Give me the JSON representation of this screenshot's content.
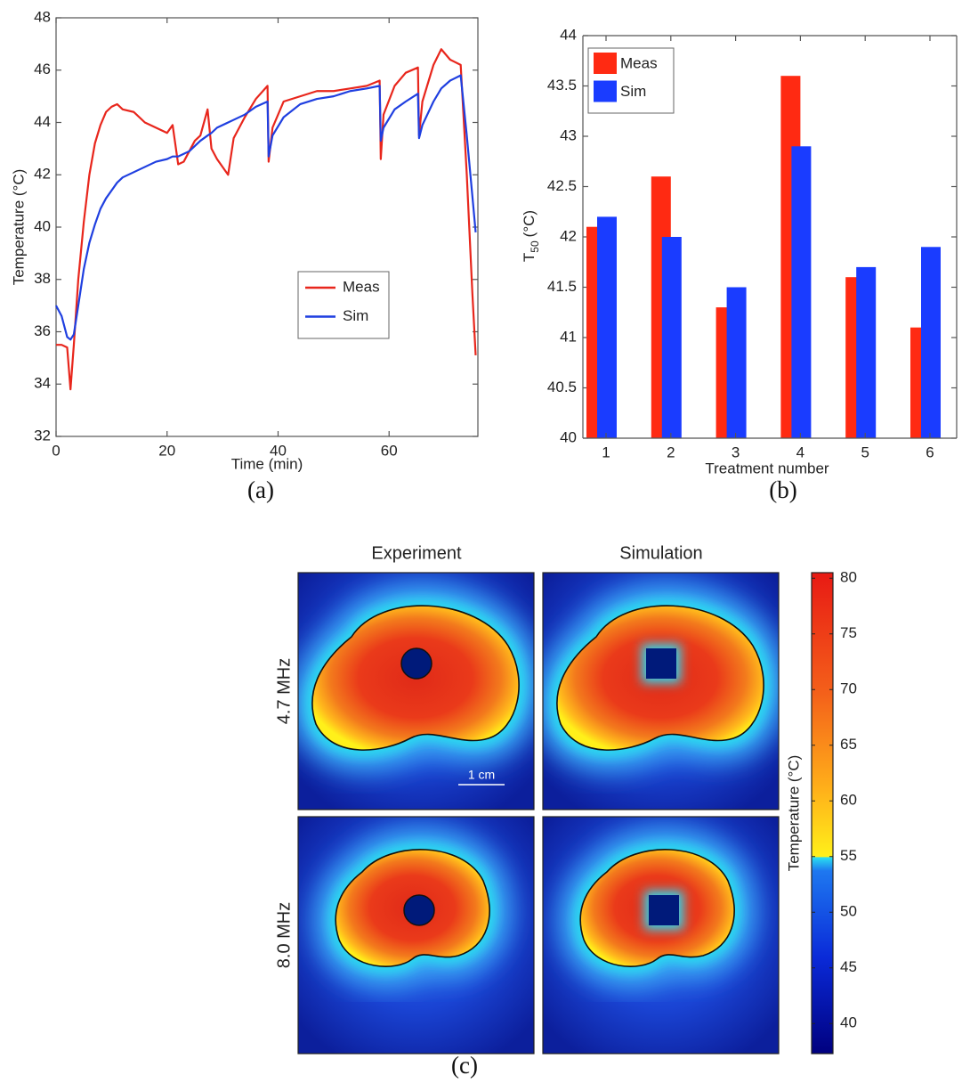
{
  "chart_data": [
    {
      "type": "line",
      "caption": "(a)",
      "xlabel": "Time (min)",
      "ylabel": "Temperature (°C)",
      "xlim": [
        0,
        76
      ],
      "ylim": [
        32,
        48
      ],
      "xticks": [
        0,
        20,
        40,
        60
      ],
      "yticks": [
        32,
        34,
        36,
        38,
        40,
        42,
        44,
        46,
        48
      ],
      "legend": "lower right",
      "x": [
        0,
        1,
        2,
        2.6,
        3.2,
        4,
        5,
        6,
        7,
        8,
        9,
        10,
        11,
        12,
        14,
        16,
        18,
        20,
        21,
        22,
        23,
        24,
        25,
        26,
        27.3,
        28,
        29,
        31,
        32,
        34,
        36,
        38.1,
        38.3,
        39,
        41,
        44,
        47,
        50,
        53,
        56,
        58.3,
        58.5,
        59,
        61,
        63,
        65.2,
        65.4,
        66,
        68,
        69.4,
        71,
        72.9,
        74,
        75,
        75.6
      ],
      "series": [
        {
          "name": "Meas",
          "color": "#e8261c",
          "values": [
            35.5,
            35.5,
            35.4,
            33.8,
            35.5,
            38,
            40.2,
            42,
            43.2,
            43.9,
            44.4,
            44.6,
            44.7,
            44.5,
            44.4,
            44.0,
            43.8,
            43.6,
            43.9,
            42.4,
            42.5,
            42.9,
            43.3,
            43.5,
            44.5,
            43.0,
            42.6,
            42.0,
            43.4,
            44.2,
            44.9,
            45.4,
            42.5,
            43.8,
            44.8,
            45.0,
            45.2,
            45.2,
            45.3,
            45.4,
            45.6,
            42.6,
            44.3,
            45.4,
            45.9,
            46.1,
            43.5,
            44.8,
            46.2,
            46.8,
            46.4,
            46.2,
            42.0,
            37.5,
            35.1
          ]
        },
        {
          "name": "Sim",
          "color": "#1f3fe0",
          "values": [
            37.0,
            36.6,
            35.8,
            35.7,
            35.9,
            37,
            38.4,
            39.4,
            40.1,
            40.7,
            41.1,
            41.4,
            41.7,
            41.9,
            42.1,
            42.3,
            42.5,
            42.6,
            42.7,
            42.7,
            42.8,
            42.9,
            43.1,
            43.3,
            43.5,
            43.6,
            43.8,
            44.0,
            44.1,
            44.3,
            44.6,
            44.8,
            42.7,
            43.5,
            44.2,
            44.7,
            44.9,
            45.0,
            45.2,
            45.3,
            45.4,
            43.3,
            43.8,
            44.5,
            44.8,
            45.1,
            43.4,
            43.9,
            44.8,
            45.3,
            45.6,
            45.8,
            43.5,
            41.2,
            39.8
          ]
        }
      ]
    },
    {
      "type": "bar",
      "caption": "(b)",
      "xlabel": "Treatment number",
      "ylabel": {
        "symbol": "T",
        "subscript": "50",
        "unit": "(°C)"
      },
      "categories": [
        "1",
        "2",
        "3",
        "4",
        "5",
        "6"
      ],
      "ylim": [
        40,
        44
      ],
      "yticks": [
        40,
        40.5,
        41,
        41.5,
        42,
        42.5,
        43,
        43.5,
        44
      ],
      "legend": "upper left",
      "series": [
        {
          "name": "Meas",
          "color": "#ff2a12",
          "values": [
            42.1,
            42.6,
            41.3,
            43.6,
            41.6,
            41.1
          ]
        },
        {
          "name": "Sim",
          "color": "#1a3cff",
          "values": [
            42.2,
            42.0,
            41.5,
            42.9,
            41.7,
            41.9
          ]
        }
      ]
    },
    {
      "type": "image-grid",
      "caption": "(c)",
      "columns": [
        "Experiment",
        "Simulation"
      ],
      "rows": [
        "4.7 MHz",
        "8.0 MHz"
      ],
      "scale_bar": "1 cm",
      "colorbar": {
        "label": "Temperature (°C)",
        "lim": [
          37.3,
          80.5
        ],
        "ticks": [
          40,
          45,
          50,
          55,
          60,
          65,
          70,
          75,
          80
        ]
      }
    }
  ]
}
